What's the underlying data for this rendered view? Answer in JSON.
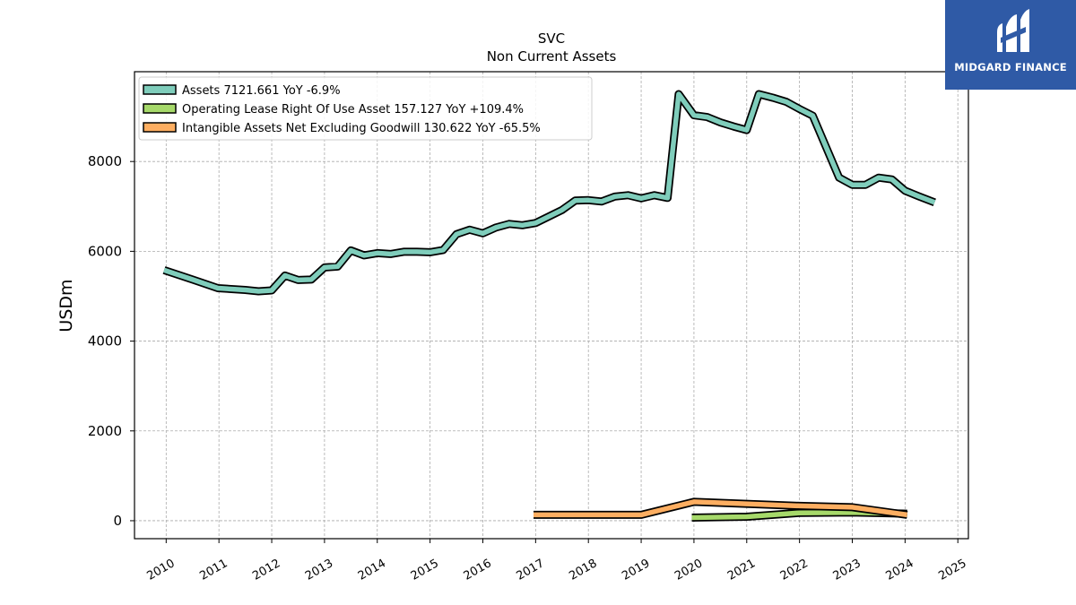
{
  "chart_data": {
    "type": "line",
    "title": "SVC",
    "subtitle": "Non Current  Assets",
    "ylabel": "USDm",
    "xlabel": "",
    "xlim": [
      2009.4,
      2025.2
    ],
    "ylim": [
      -400,
      10000
    ],
    "x_ticks": [
      "2010",
      "2011",
      "2012",
      "2013",
      "2014",
      "2015",
      "2016",
      "2017",
      "2018",
      "2019",
      "2020",
      "2021",
      "2022",
      "2023",
      "2024",
      "2025"
    ],
    "y_ticks": [
      0,
      2000,
      4000,
      6000,
      8000
    ],
    "y_tick_labels": [
      "0",
      "2000",
      "4000",
      "6000",
      "8000"
    ],
    "grid": true,
    "legend_position": "top-left",
    "series": [
      {
        "name": "Assets  7121.661 YoY -6.9%",
        "color": "#7fcdbb",
        "points": [
          [
            2009.96,
            5580
          ],
          [
            2010.5,
            5370
          ],
          [
            2010.98,
            5180
          ],
          [
            2011.5,
            5140
          ],
          [
            2011.75,
            5110
          ],
          [
            2012.0,
            5130
          ],
          [
            2012.25,
            5460
          ],
          [
            2012.5,
            5360
          ],
          [
            2012.75,
            5370
          ],
          [
            2013.0,
            5640
          ],
          [
            2013.25,
            5660
          ],
          [
            2013.5,
            6020
          ],
          [
            2013.75,
            5910
          ],
          [
            2014.0,
            5960
          ],
          [
            2014.25,
            5940
          ],
          [
            2014.5,
            5990
          ],
          [
            2014.75,
            5990
          ],
          [
            2015.0,
            5980
          ],
          [
            2015.25,
            6030
          ],
          [
            2015.5,
            6380
          ],
          [
            2015.75,
            6480
          ],
          [
            2016.0,
            6400
          ],
          [
            2016.25,
            6530
          ],
          [
            2016.5,
            6610
          ],
          [
            2016.75,
            6580
          ],
          [
            2017.0,
            6630
          ],
          [
            2017.5,
            6920
          ],
          [
            2017.75,
            7130
          ],
          [
            2018.0,
            7140
          ],
          [
            2018.25,
            7110
          ],
          [
            2018.5,
            7220
          ],
          [
            2018.75,
            7250
          ],
          [
            2019.0,
            7180
          ],
          [
            2019.25,
            7250
          ],
          [
            2019.5,
            7190
          ],
          [
            2019.71,
            9500
          ],
          [
            2020.0,
            9030
          ],
          [
            2020.25,
            8990
          ],
          [
            2020.5,
            8870
          ],
          [
            2020.75,
            8780
          ],
          [
            2021.0,
            8700
          ],
          [
            2021.23,
            9500
          ],
          [
            2021.5,
            9420
          ],
          [
            2021.75,
            9330
          ],
          [
            2022.0,
            9170
          ],
          [
            2022.25,
            9020
          ],
          [
            2022.75,
            7640
          ],
          [
            2023.0,
            7480
          ],
          [
            2023.25,
            7480
          ],
          [
            2023.5,
            7640
          ],
          [
            2023.75,
            7600
          ],
          [
            2024.0,
            7350
          ],
          [
            2024.25,
            7230
          ],
          [
            2024.56,
            7090
          ]
        ]
      },
      {
        "name": "Operating Lease Right Of Use Asset  157.127 YoY +109.4%",
        "color": "#a6d96a",
        "points": [
          [
            2019.96,
            70
          ],
          [
            2021.0,
            90
          ],
          [
            2022.0,
            175
          ],
          [
            2023.0,
            185
          ],
          [
            2024.04,
            157
          ]
        ]
      },
      {
        "name": "Intangible Assets Net Excluding Goodwill  130.622 YoY -65.5%",
        "color": "#fdae61",
        "points": [
          [
            2016.96,
            130
          ],
          [
            2019.0,
            130
          ],
          [
            2020.0,
            420
          ],
          [
            2022.0,
            330
          ],
          [
            2023.0,
            300
          ],
          [
            2024.04,
            130
          ]
        ]
      }
    ]
  },
  "brand": {
    "name": "MIDGARD FINANCE",
    "background_color": "#2f5aa6",
    "icon": "midgard-logo-icon"
  }
}
